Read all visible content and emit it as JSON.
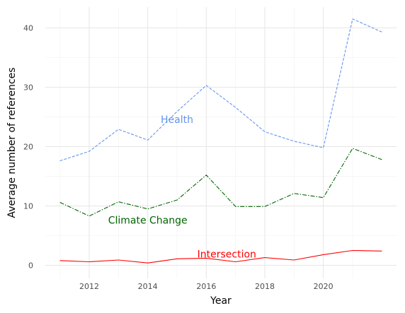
{
  "chart_data": {
    "type": "line",
    "title": "",
    "xlabel": "Year",
    "ylabel": "Average number of references",
    "xlim": [
      2010.5,
      2022.5
    ],
    "ylim": [
      -2.2,
      43.5
    ],
    "x_ticks": [
      2012,
      2014,
      2016,
      2018,
      2020
    ],
    "y_ticks": [
      0,
      10,
      20,
      30,
      40
    ],
    "grid": true,
    "legend": "none",
    "x": [
      2011,
      2012,
      2013,
      2014,
      2015,
      2016,
      2017,
      2018,
      2019,
      2020,
      2021,
      2022
    ],
    "series": [
      {
        "name": "Health",
        "values": [
          17.6,
          19.2,
          22.9,
          21.1,
          25.9,
          30.3,
          26.6,
          22.5,
          20.9,
          19.8,
          41.5,
          39.3
        ],
        "color": "#6495ED",
        "dash": "dashed",
        "label_at": [
          2015,
          24.6
        ]
      },
      {
        "name": "Climate Change",
        "values": [
          10.6,
          8.3,
          10.7,
          9.5,
          11.0,
          15.2,
          9.9,
          9.9,
          12.1,
          11.4,
          19.7,
          17.8
        ],
        "color": "#006400",
        "dash": "dashdot",
        "label_at": [
          2014,
          7.6
        ]
      },
      {
        "name": "Intersection",
        "values": [
          0.8,
          0.6,
          0.9,
          0.4,
          1.1,
          1.2,
          0.6,
          1.3,
          0.9,
          1.8,
          2.5,
          2.4
        ],
        "color": "#FF0000",
        "dash": "solid",
        "label_at": [
          2016.7,
          1.9
        ]
      }
    ]
  }
}
